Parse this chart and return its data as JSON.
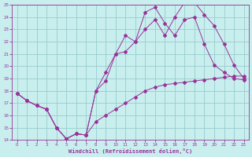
{
  "xlabel": "Windchill (Refroidissement éolien,°C)",
  "bg_color": "#c8eeee",
  "line_color": "#993399",
  "grid_color": "#99cccc",
  "xlim": [
    -0.5,
    23.5
  ],
  "ylim": [
    14,
    25
  ],
  "xticks": [
    0,
    1,
    2,
    3,
    4,
    5,
    6,
    7,
    8,
    9,
    10,
    11,
    12,
    13,
    14,
    15,
    16,
    17,
    18,
    19,
    20,
    21,
    22,
    23
  ],
  "yticks": [
    14,
    15,
    16,
    17,
    18,
    19,
    20,
    21,
    22,
    23,
    24,
    25
  ],
  "line1_x": [
    0,
    1,
    2,
    3,
    4,
    5,
    6,
    7,
    8,
    9,
    10,
    11,
    12,
    13,
    14,
    15,
    16,
    17,
    18,
    19,
    20,
    21,
    22,
    23
  ],
  "line1_y": [
    17.8,
    17.2,
    16.8,
    16.5,
    15.0,
    14.1,
    14.5,
    14.4,
    15.5,
    16.0,
    16.5,
    17.0,
    17.5,
    18.0,
    18.3,
    18.5,
    18.6,
    18.7,
    18.8,
    18.9,
    19.0,
    19.1,
    19.2,
    19.2
  ],
  "line2_x": [
    0,
    1,
    2,
    3,
    4,
    5,
    6,
    7,
    8,
    9,
    10,
    11,
    12,
    13,
    14,
    15,
    16,
    17,
    18,
    19,
    20,
    21,
    22,
    23
  ],
  "line2_y": [
    17.8,
    17.2,
    16.8,
    16.5,
    15.0,
    14.1,
    14.5,
    14.4,
    18.0,
    18.8,
    21.0,
    22.5,
    22.0,
    24.4,
    24.8,
    23.5,
    22.5,
    23.8,
    24.0,
    21.8,
    20.1,
    19.5,
    19.0,
    18.9
  ],
  "line3_x": [
    0,
    1,
    2,
    3,
    4,
    5,
    6,
    7,
    8,
    9,
    10,
    11,
    12,
    13,
    14,
    15,
    16,
    17,
    18,
    19,
    20,
    21,
    22,
    23
  ],
  "line3_y": [
    17.8,
    17.2,
    16.8,
    16.5,
    15.0,
    14.1,
    14.5,
    14.4,
    18.0,
    19.5,
    21.0,
    21.2,
    22.0,
    23.0,
    23.8,
    22.5,
    24.0,
    25.2,
    25.2,
    24.2,
    23.3,
    21.8,
    20.1,
    19.0
  ]
}
